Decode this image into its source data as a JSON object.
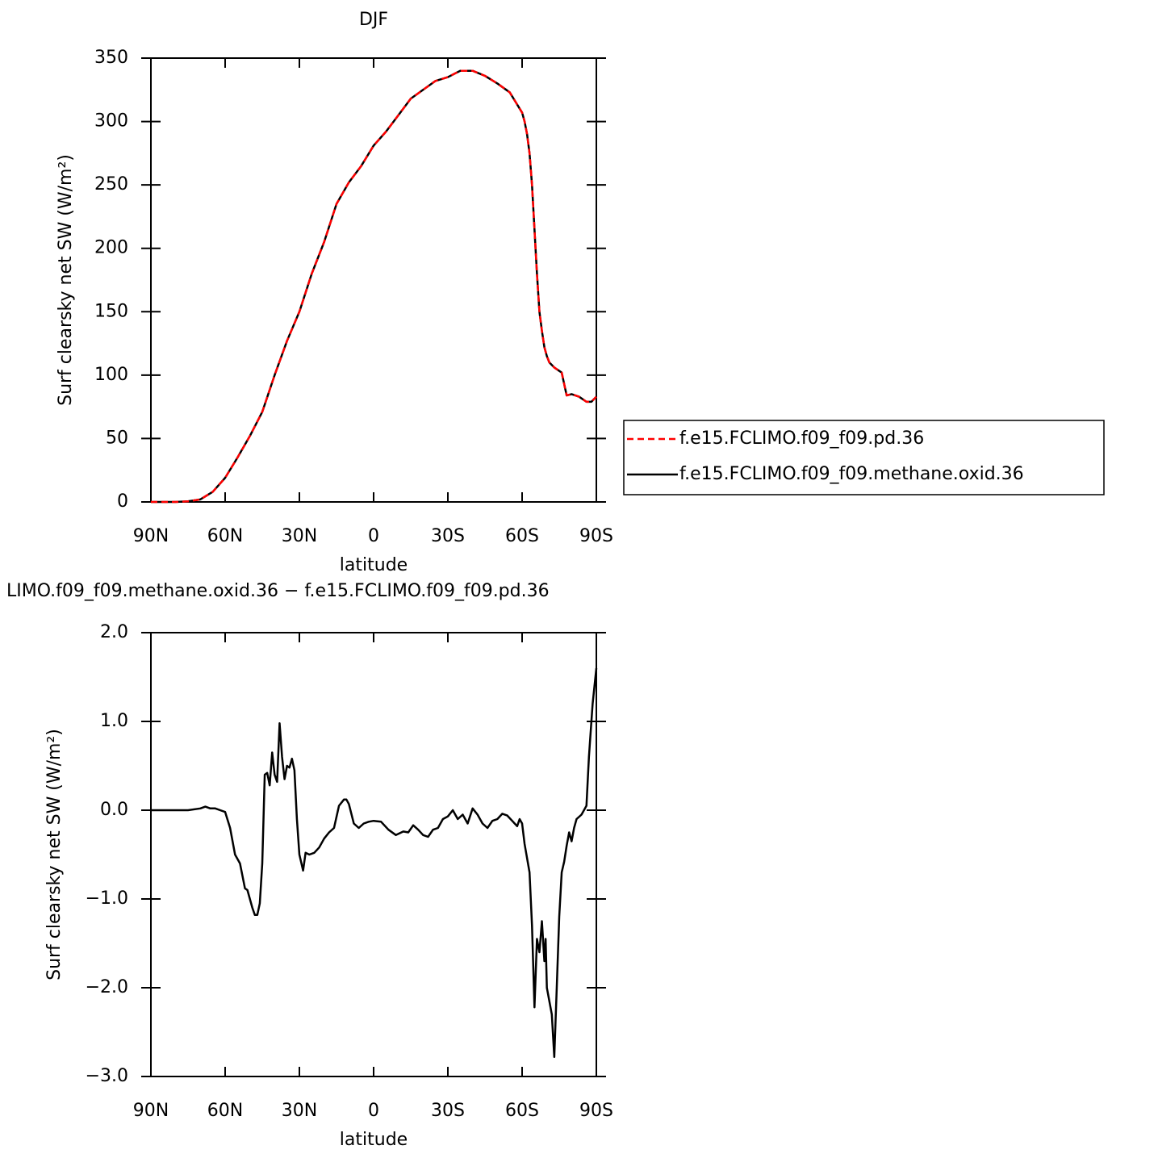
{
  "chart_data": [
    {
      "type": "line",
      "title": "DJF",
      "x_label": "latitude",
      "y_label": "Surf clearsky net SW (W/m²)",
      "xlim": [
        90,
        -90
      ],
      "xticks": [
        {
          "value": 90,
          "label": "90N"
        },
        {
          "value": 60,
          "label": "60N"
        },
        {
          "value": 30,
          "label": "30N"
        },
        0,
        {
          "value": -30,
          "label": "30S"
        },
        {
          "value": -60,
          "label": "60S"
        },
        {
          "value": -90,
          "label": "90S"
        }
      ],
      "ylim": [
        0,
        350
      ],
      "yticks": [
        0,
        50,
        100,
        150,
        200,
        250,
        300,
        350
      ],
      "legend": "outside-right",
      "x": [
        90,
        80,
        75,
        70,
        65,
        60,
        55,
        50,
        45,
        40,
        35,
        30,
        25,
        20,
        15,
        10,
        5,
        0,
        -5,
        -10,
        -15,
        -20,
        -25,
        -30,
        -35,
        -40,
        -45,
        -50,
        -55,
        -60,
        -61,
        -62,
        -63,
        -64,
        -65,
        -66,
        -67,
        -68,
        -69,
        -70,
        -71,
        -73,
        -76,
        -78,
        -80,
        -83,
        -86,
        -88,
        -90
      ],
      "series": [
        {
          "name": "f.e15.FCLIMO.f09_f09.pd.36",
          "color": "#ff0000",
          "line_style": "dashed",
          "values": [
            0,
            0,
            0.5,
            2,
            8,
            19,
            35,
            52,
            71,
            100,
            127,
            150,
            180,
            205,
            235,
            252,
            265,
            281,
            292,
            305,
            318,
            325,
            332,
            335,
            340,
            340,
            336,
            330,
            323,
            307,
            300,
            290,
            275,
            250,
            215,
            180,
            150,
            135,
            122,
            115,
            110,
            106,
            102,
            84,
            85,
            83,
            79,
            79,
            83
          ]
        },
        {
          "name": "f.e15.FCLIMO.f09_f09.methane.oxid.36",
          "color": "#000000",
          "line_style": "solid",
          "values": [
            0,
            0,
            0.5,
            2,
            8,
            19,
            35,
            52,
            71,
            100,
            127,
            150,
            180,
            205,
            235,
            252,
            265,
            281,
            292,
            305,
            318,
            325,
            332,
            335,
            340,
            340,
            336,
            330,
            323,
            307,
            300,
            290,
            275,
            250,
            215,
            180,
            150,
            135,
            122,
            115,
            110,
            106,
            102,
            84,
            85,
            83,
            79,
            79,
            83
          ]
        }
      ]
    },
    {
      "type": "line",
      "title": "LIMO.f09_f09.methane.oxid.36 − f.e15.FCLIMO.f09_f09.pd.36",
      "x_label": "latitude",
      "y_label": "Surf clearsky net SW (W/m²)",
      "xlim": [
        90,
        -90
      ],
      "xticks": [
        {
          "value": 90,
          "label": "90N"
        },
        {
          "value": 60,
          "label": "60N"
        },
        {
          "value": 30,
          "label": "30N"
        },
        0,
        {
          "value": -30,
          "label": "30S"
        },
        {
          "value": -60,
          "label": "60S"
        },
        {
          "value": -90,
          "label": "90S"
        }
      ],
      "ylim": [
        -3,
        2
      ],
      "yticks": [
        {
          "value": -3,
          "label": "−3.0"
        },
        {
          "value": -2,
          "label": "−2.0"
        },
        {
          "value": -1,
          "label": "−1.0"
        },
        {
          "value": 0,
          "label": "0.0"
        },
        {
          "value": 1,
          "label": "1.0"
        },
        {
          "value": 2,
          "label": "2.0"
        }
      ],
      "color": "#000000",
      "x": [
        90,
        80,
        75,
        70,
        68,
        66,
        64,
        62,
        60,
        58,
        56,
        54,
        52,
        51,
        49,
        48,
        47,
        46,
        45,
        44,
        43,
        42,
        41,
        40,
        39,
        38,
        37,
        36,
        35,
        34,
        33,
        32,
        31,
        30,
        28.5,
        27.5,
        26,
        24,
        22,
        20,
        18,
        16,
        14,
        12,
        11,
        10,
        8,
        6,
        4,
        2,
        0,
        -3,
        -6,
        -9,
        -12,
        -14,
        -16,
        -18,
        -20,
        -22,
        -24,
        -26,
        -28,
        -30,
        -32,
        -34,
        -36,
        -38,
        -40,
        -42,
        -44,
        -46,
        -48,
        -50,
        -52,
        -54,
        -56,
        -58,
        -59,
        -60,
        -61,
        -63,
        -64,
        -65,
        -66,
        -67,
        -68,
        -69,
        -69.5,
        -70,
        -72,
        -73,
        -74,
        -75,
        -76,
        -77,
        -78,
        -79,
        -80,
        -81,
        -82,
        -84,
        -85,
        -86,
        -87,
        -88.5,
        -90
      ],
      "values": [
        0,
        0,
        0,
        0.02,
        0.04,
        0.02,
        0.02,
        0,
        -0.02,
        -0.2,
        -0.5,
        -0.6,
        -0.88,
        -0.9,
        -1.1,
        -1.18,
        -1.18,
        -1.05,
        -0.6,
        0.4,
        0.42,
        0.28,
        0.65,
        0.4,
        0.32,
        0.98,
        0.6,
        0.35,
        0.5,
        0.48,
        0.58,
        0.45,
        -0.1,
        -0.5,
        -0.68,
        -0.48,
        -0.5,
        -0.48,
        -0.42,
        -0.32,
        -0.25,
        -0.2,
        0.05,
        0.12,
        0.12,
        0.07,
        -0.15,
        -0.2,
        -0.15,
        -0.13,
        -0.12,
        -0.13,
        -0.22,
        -0.28,
        -0.24,
        -0.25,
        -0.17,
        -0.22,
        -0.28,
        -0.3,
        -0.22,
        -0.2,
        -0.1,
        -0.07,
        0,
        -0.1,
        -0.05,
        -0.15,
        0.02,
        -0.05,
        -0.15,
        -0.2,
        -0.12,
        -0.1,
        -0.04,
        -0.06,
        -0.12,
        -0.18,
        -0.1,
        -0.15,
        -0.38,
        -0.7,
        -1.3,
        -2.22,
        -1.45,
        -1.6,
        -1.25,
        -1.7,
        -1.45,
        -2.0,
        -2.3,
        -2.78,
        -2.0,
        -1.2,
        -0.7,
        -0.58,
        -0.4,
        -0.25,
        -0.35,
        -0.2,
        -0.1,
        -0.05,
        0,
        0.05,
        0.6,
        1.2,
        1.6
      ]
    }
  ]
}
